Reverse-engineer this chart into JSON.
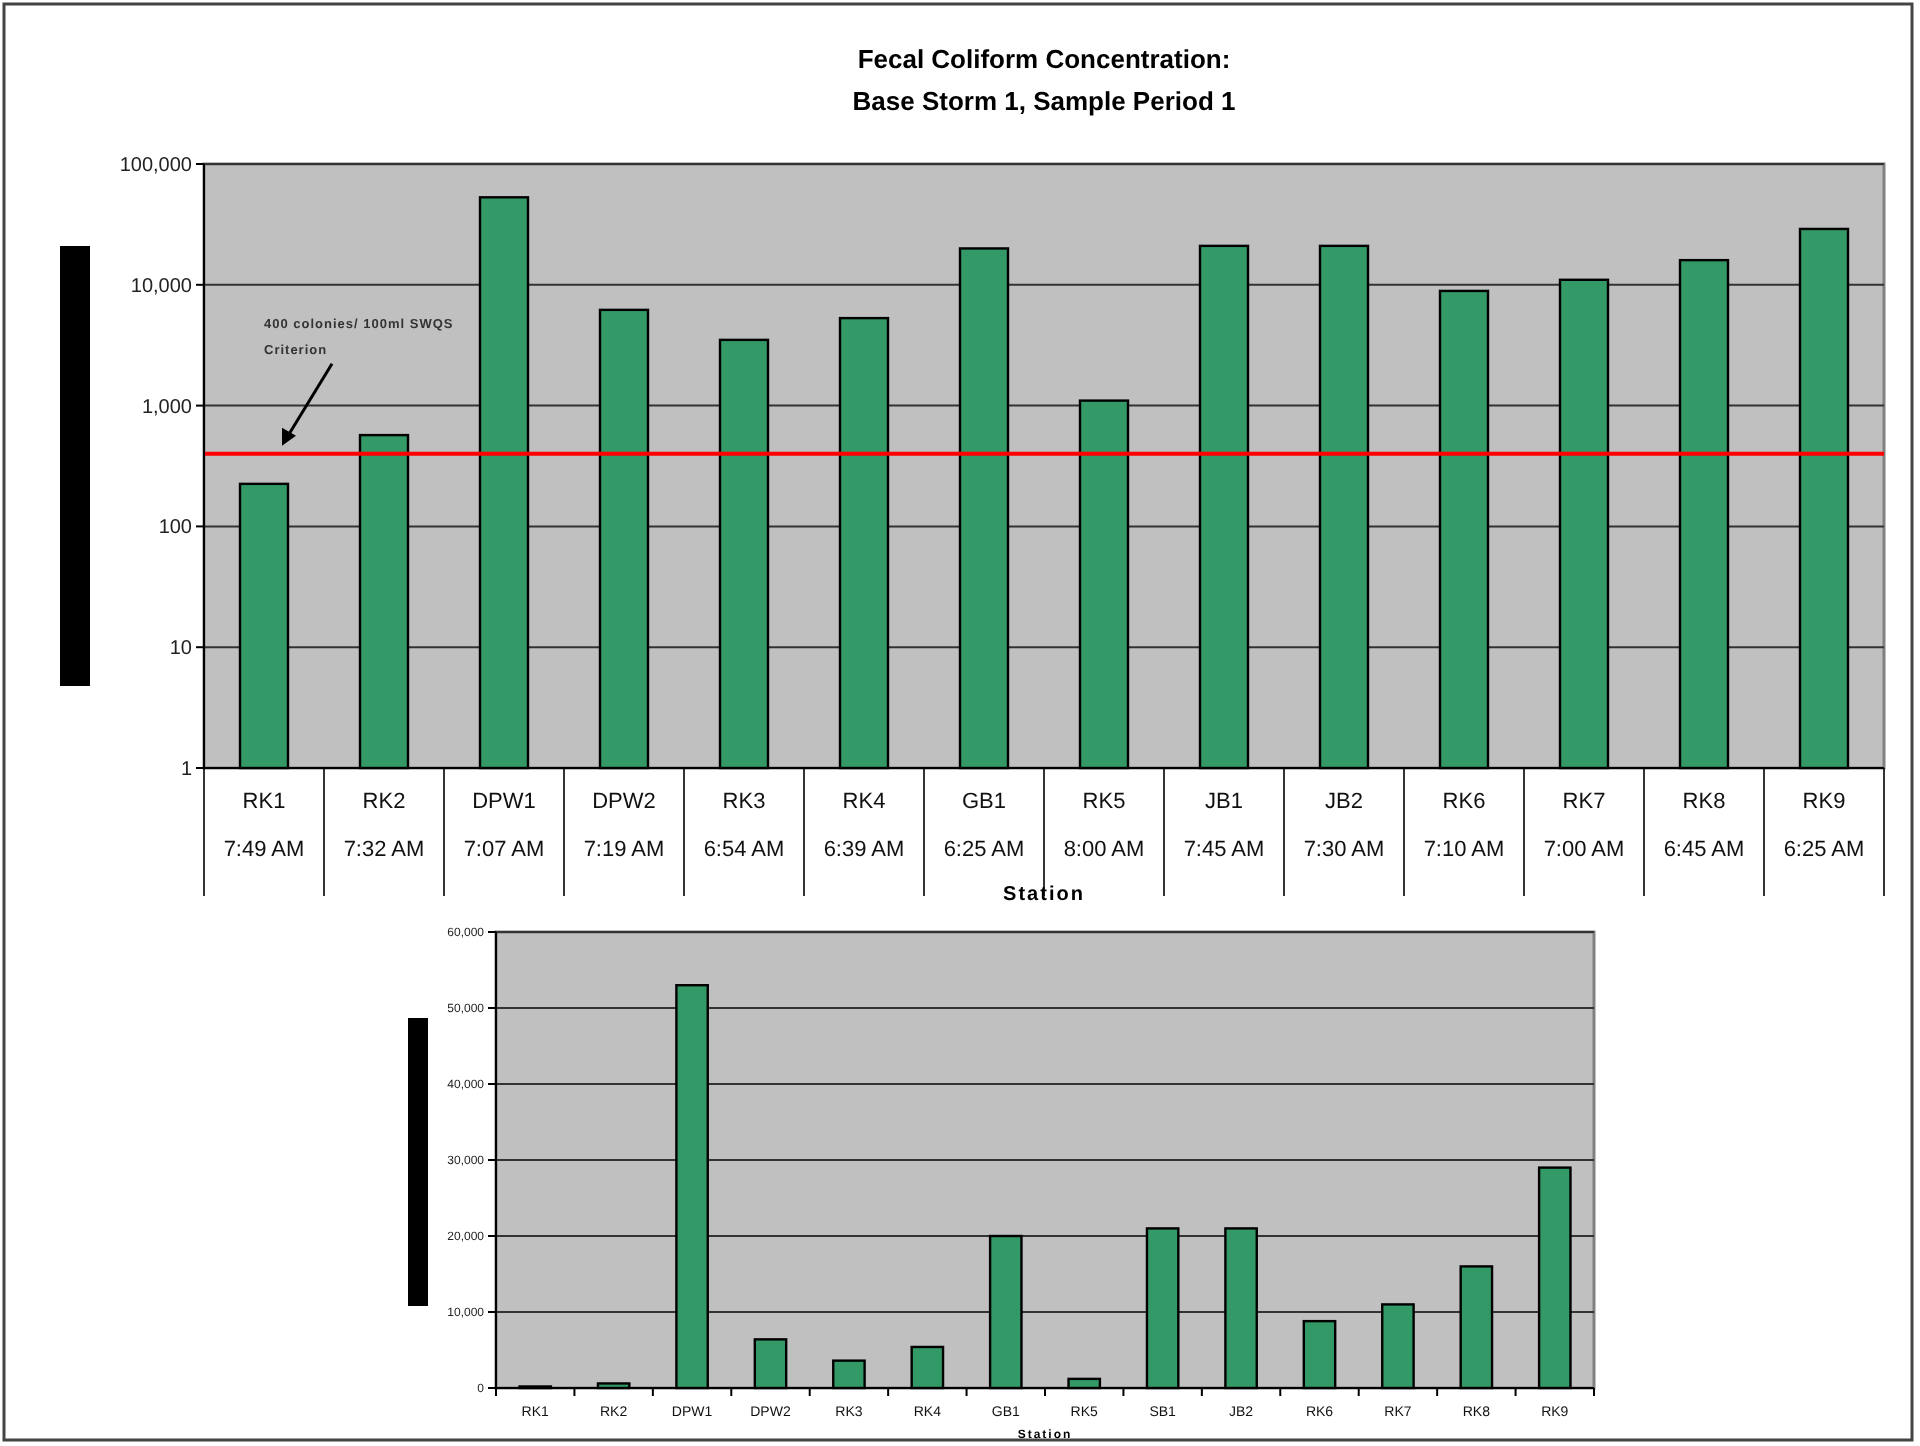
{
  "chart_data": [
    {
      "type": "bar",
      "title": "Fecal Coliform Concentration:\nBase Storm 1, Sample Period 1",
      "xlabel": "Station",
      "categories": [
        "RK1\n7:49 AM",
        "RK2\n7:32 AM",
        "DPW1\n7:07 AM",
        "DPW2\n7:19 AM",
        "RK3\n6:54 AM",
        "RK4\n6:39 AM",
        "GB1\n6:25 AM",
        "RK5\n8:00 AM",
        "JB1\n7:45 AM",
        "JB2\n7:30 AM",
        "RK6\n7:10 AM",
        "RK7\n7:00 AM",
        "RK8\n6:45 AM",
        "RK9\n6:25 AM"
      ],
      "values": [
        225,
        570,
        53000,
        6200,
        3500,
        5300,
        20000,
        1100,
        21000,
        21000,
        8900,
        11000,
        16000,
        29000
      ],
      "color": "#339966",
      "log": true,
      "ylim": [
        1,
        100000
      ],
      "yticks": [
        1,
        10,
        100,
        {
          "value": 1000,
          "label": "1,000"
        },
        {
          "value": 10000,
          "label": "10,000"
        },
        {
          "value": 100000,
          "label": "100,000"
        }
      ],
      "grid": "y",
      "ref_lines": [
        {
          "axis": "y",
          "value": 400,
          "label": "400 colonies/ 100ml SWQS Criterion",
          "color": "#ff0000"
        }
      ]
    },
    {
      "type": "bar",
      "xlabel": "Station",
      "categories": [
        "RK1",
        "RK2",
        "DPW1",
        "DPW2",
        "RK3",
        "RK4",
        "GB1",
        "RK5",
        "SB1",
        "JB2",
        "RK6",
        "RK7",
        "RK8",
        "RK9"
      ],
      "values": [
        200,
        600,
        53000,
        6400,
        3600,
        5400,
        20000,
        1200,
        21000,
        21000,
        8800,
        11000,
        16000,
        29000
      ],
      "color": "#339966",
      "ylim": [
        0,
        60000
      ],
      "yticks": [
        0,
        {
          "value": 10000,
          "label": "10,000"
        },
        {
          "value": 20000,
          "label": "20,000"
        },
        {
          "value": 30000,
          "label": "30,000"
        },
        {
          "value": 40000,
          "label": "40,000"
        },
        {
          "value": 50000,
          "label": "50,000"
        },
        {
          "value": 60000,
          "label": "60,000"
        }
      ],
      "grid": "y"
    }
  ]
}
